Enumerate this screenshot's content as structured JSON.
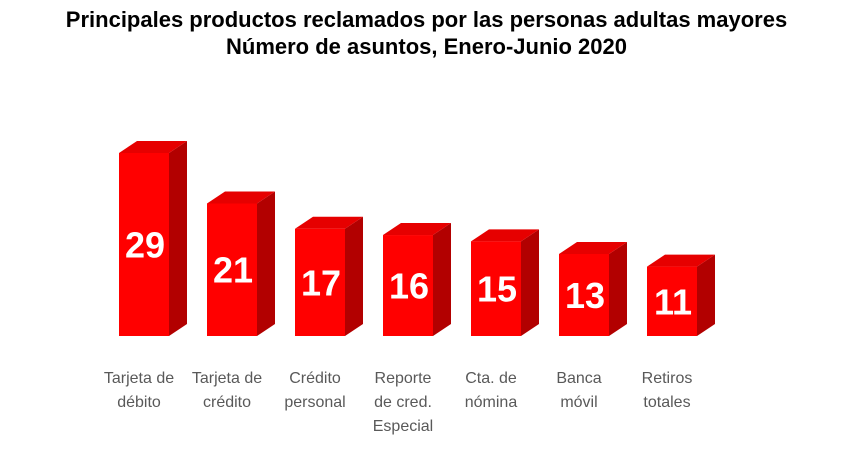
{
  "chart_data": {
    "type": "bar",
    "title": "Principales productos reclamados por las personas adultas mayores",
    "subtitle": "Número de asuntos, Enero-Junio 2020",
    "categories": [
      [
        "Tarjeta de",
        "débito"
      ],
      [
        "Tarjeta de",
        "crédito"
      ],
      [
        "Crédito",
        "personal"
      ],
      [
        "Reporte",
        "de cred.",
        "Especial"
      ],
      [
        "Cta. de",
        "nómina"
      ],
      [
        "Banca",
        "móvil"
      ],
      [
        "Retiros",
        "totales"
      ]
    ],
    "values": [
      29,
      21,
      17,
      16,
      15,
      13,
      11
    ],
    "data_labels": [
      "29",
      "21",
      "17",
      "16",
      "15",
      "13",
      "11"
    ],
    "ylim": [
      0,
      29
    ],
    "grid": false,
    "legend": "none",
    "colors": {
      "bar_front": "#ff0000",
      "bar_side": "#b20000",
      "bar_top": "#e60000",
      "bar_label": "#ffffff",
      "category_label": "#595959"
    }
  }
}
